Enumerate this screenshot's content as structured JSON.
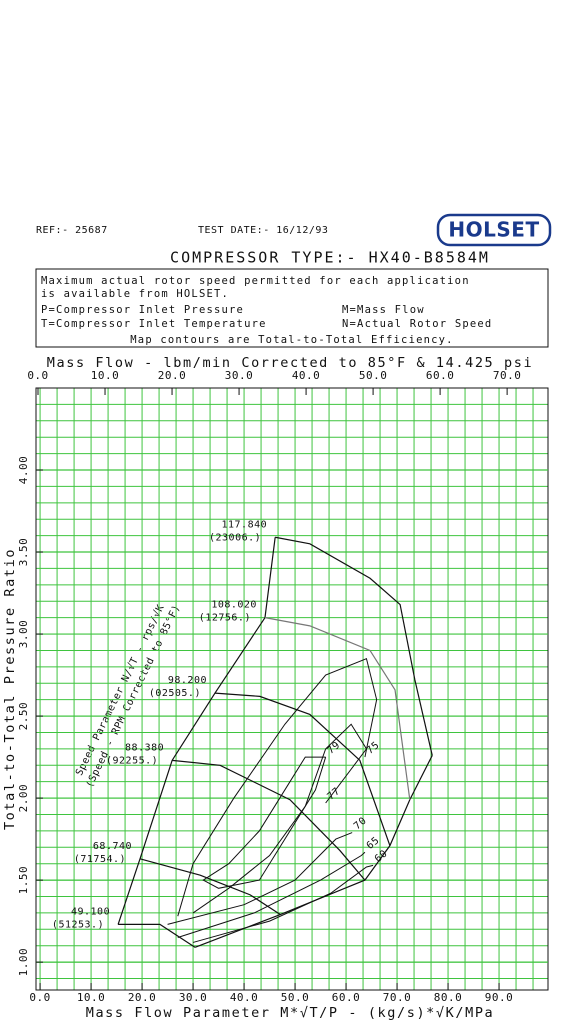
{
  "header": {
    "ref": "REF:- 25687",
    "test_date": "TEST DATE:- 16/12/93",
    "logo": "HOLSET",
    "compressor_type": "COMPRESSOR TYPE:- HX40-B8584M"
  },
  "notes": {
    "lines": [
      "Maximum actual rotor speed permitted for each application",
      "is available from HOLSET."
    ],
    "p_def": "P=Compressor Inlet Pressure",
    "m_def": "M=Mass Flow",
    "t_def": "T=Compressor Inlet Temperature",
    "n_def": "N=Actual Rotor Speed",
    "footer": "Map contours are Total-to-Total Efficiency."
  },
  "chart_data": {
    "type": "line",
    "x2label": "Mass Flow - lbm/min Corrected to 85°F & 14.425 psi",
    "x2lim": [
      -0.3,
      76.1
    ],
    "x2ticks": [
      {
        "value": 0,
        "label": "0.0"
      },
      {
        "value": 10,
        "label": "10.0"
      },
      {
        "value": 20,
        "label": "20.0"
      },
      {
        "value": 30,
        "label": "30.0"
      },
      {
        "value": 40,
        "label": "40.0"
      },
      {
        "value": 50,
        "label": "50.0"
      },
      {
        "value": 60,
        "label": "60.0"
      },
      {
        "value": 70,
        "label": "70.0"
      }
    ],
    "xlabel": "Mass Flow Parameter  M*√T/P  -  (kg/s)*√K/MPa",
    "xlim": [
      -0.8,
      99.6
    ],
    "xticks": [
      {
        "value": 0,
        "label": "0.0"
      },
      {
        "value": 10,
        "label": "10.0"
      },
      {
        "value": 20,
        "label": "20.0"
      },
      {
        "value": 30,
        "label": "30.0"
      },
      {
        "value": 40,
        "label": "40.0"
      },
      {
        "value": 50,
        "label": "50.0"
      },
      {
        "value": 60,
        "label": "60.0"
      },
      {
        "value": 70,
        "label": "70.0"
      },
      {
        "value": 80,
        "label": "80.0"
      },
      {
        "value": 90,
        "label": "90.0"
      }
    ],
    "ylabel": "Total-to-Total Pressure Ratio",
    "ylim": [
      0.83,
      4.5
    ],
    "yticks": [
      {
        "value": 1,
        "label": "1.00"
      },
      {
        "value": 1.5,
        "label": "1.50"
      },
      {
        "value": 2,
        "label": "2.00"
      },
      {
        "value": 2.5,
        "label": "2.50"
      },
      {
        "value": 3,
        "label": "3.00"
      },
      {
        "value": 3.5,
        "label": "3.50"
      },
      {
        "value": 4,
        "label": "4.00"
      }
    ],
    "grid": true,
    "grid_color": "#3fc43f",
    "speed_annotation": [
      "Speed Parameter N/√T - rps/√K",
      "(Speed - RPM Corrected to 85°F)"
    ],
    "series": [
      {
        "name": "49.100",
        "rpm_label": "(51253.)",
        "color": "#111111",
        "x": [
          15.3,
          23.5,
          30.4
        ],
        "values": [
          1.23,
          1.23,
          1.09
        ]
      },
      {
        "name": "68.740",
        "rpm_label": "(71754.)",
        "color": "#111111",
        "x": [
          19.6,
          31.4,
          41.2,
          47.1
        ],
        "values": [
          1.63,
          1.53,
          1.41,
          1.29
        ]
      },
      {
        "name": "88.380",
        "rpm_label": "(92255.)",
        "color": "#111111",
        "x": [
          25.9,
          35.3,
          49.0,
          58.8,
          63.7
        ],
        "values": [
          2.23,
          2.2,
          1.99,
          1.68,
          1.5
        ]
      },
      {
        "name": "98.200",
        "rpm_label": "(02505.)",
        "color": "#111111",
        "x": [
          34.3,
          43.1,
          52.9,
          62.7,
          68.6
        ],
        "values": [
          2.64,
          2.62,
          2.51,
          2.23,
          1.71
        ]
      },
      {
        "name": "108.020",
        "rpm_label": "(12756.)",
        "color": "#777777",
        "x": [
          44.1,
          52.9,
          64.7,
          69.6,
          72.5
        ],
        "values": [
          3.1,
          3.05,
          2.9,
          2.66,
          1.99
        ]
      },
      {
        "name": "117.840",
        "rpm_label": "(23006.)",
        "color": "#111111",
        "x": [
          46.1,
          52.9,
          64.7,
          70.6,
          73.5,
          76.9
        ],
        "values": [
          3.59,
          3.55,
          3.34,
          3.18,
          2.72,
          2.26
        ]
      }
    ],
    "contours": [
      {
        "name": "79",
        "color": "#111111",
        "x": [
          56,
          54,
          48,
          43,
          35,
          32,
          37,
          43,
          49,
          52,
          56
        ],
        "values": [
          2.25,
          2.05,
          1.75,
          1.5,
          1.45,
          1.5,
          1.6,
          1.8,
          2.1,
          2.25,
          2.25
        ]
      },
      {
        "name": "77",
        "color": "#111111",
        "x": [
          30,
          37,
          45,
          52,
          56,
          61,
          64,
          56
        ],
        "values": [
          1.3,
          1.45,
          1.65,
          1.95,
          2.3,
          2.45,
          2.3,
          1.97
        ]
      },
      {
        "name": "75",
        "color": "#111111",
        "x": [
          27,
          30,
          38,
          48,
          56,
          64,
          66,
          63.7
        ],
        "values": [
          1.28,
          1.6,
          2.0,
          2.45,
          2.75,
          2.85,
          2.6,
          2.25
        ]
      },
      {
        "name": "70",
        "color": "#111111",
        "x": [
          25,
          40,
          50,
          58,
          61.2
        ],
        "values": [
          1.23,
          1.35,
          1.5,
          1.75,
          1.79
        ]
      },
      {
        "name": "65",
        "color": "#111111",
        "x": [
          27,
          42,
          55,
          63,
          63.7
        ],
        "values": [
          1.15,
          1.3,
          1.5,
          1.65,
          1.67
        ]
      },
      {
        "name": "60",
        "color": "#111111",
        "x": [
          30,
          45,
          57,
          64,
          65.3
        ],
        "values": [
          1.12,
          1.25,
          1.42,
          1.58,
          1.59
        ]
      }
    ]
  }
}
